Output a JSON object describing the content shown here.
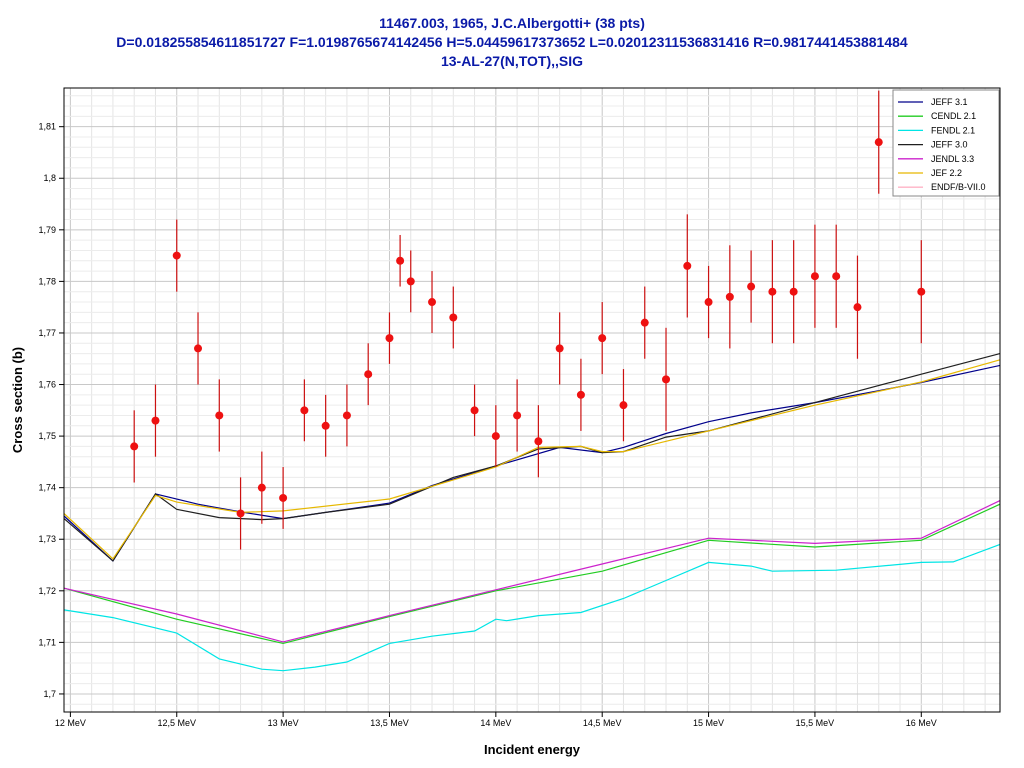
{
  "chart_data": {
    "type": "scatter",
    "title": "11467.003, 1965, J.C.Albergotti+ (38 pts)",
    "subtitle": "D=0.018255854611851727 F=1.0198765674142456 H=5.04459617373652 L=0.02012311536831416 R=0.9817441453881484",
    "subtitle2": "13-AL-27(N,TOT),,SIG",
    "xlabel": "Incident energy",
    "ylabel": "Cross section (b)",
    "xlim": [
      11.97,
      16.37
    ],
    "ylim": [
      1.6965,
      1.8175
    ],
    "x_ticks": [
      {
        "value": 12.0,
        "label": "12 MeV"
      },
      {
        "value": 12.5,
        "label": "12,5 MeV"
      },
      {
        "value": 13.0,
        "label": "13 MeV"
      },
      {
        "value": 13.5,
        "label": "13,5 MeV"
      },
      {
        "value": 14.0,
        "label": "14 MeV"
      },
      {
        "value": 14.5,
        "label": "14,5 MeV"
      },
      {
        "value": 15.0,
        "label": "15 MeV"
      },
      {
        "value": 15.5,
        "label": "15,5 MeV"
      },
      {
        "value": 16.0,
        "label": "16 MeV"
      }
    ],
    "y_ticks": [
      {
        "value": 1.7,
        "label": "1,7"
      },
      {
        "value": 1.71,
        "label": "1,71"
      },
      {
        "value": 1.72,
        "label": "1,72"
      },
      {
        "value": 1.73,
        "label": "1,73"
      },
      {
        "value": 1.74,
        "label": "1,74"
      },
      {
        "value": 1.75,
        "label": "1,75"
      },
      {
        "value": 1.76,
        "label": "1,76"
      },
      {
        "value": 1.77,
        "label": "1,77"
      },
      {
        "value": 1.78,
        "label": "1,78"
      },
      {
        "value": 1.79,
        "label": "1,79"
      },
      {
        "value": 1.8,
        "label": "1,8"
      },
      {
        "value": 1.81,
        "label": "1,81"
      }
    ],
    "grid": true,
    "legend_position": "top-right",
    "series": [
      {
        "name": "JEFF 3.1",
        "color": "#00008b",
        "x": [
          11.97,
          12.2,
          12.4,
          12.6,
          12.8,
          13.0,
          13.2,
          13.5,
          13.7,
          14.0,
          14.3,
          14.5,
          14.6,
          14.8,
          15.0,
          15.2,
          15.5,
          15.8,
          16.0,
          16.37
        ],
        "y": [
          1.7345,
          1.7258,
          1.7388,
          1.7368,
          1.7353,
          1.734,
          1.7352,
          1.737,
          1.7404,
          1.7442,
          1.7478,
          1.7468,
          1.7478,
          1.7505,
          1.7528,
          1.7545,
          1.7565,
          1.7588,
          1.7604,
          1.7637
        ]
      },
      {
        "name": "CENDL 2.1",
        "color": "#22cc22",
        "x": [
          11.97,
          12.5,
          13.0,
          13.5,
          14.0,
          14.5,
          15.0,
          15.5,
          16.0,
          16.37
        ],
        "y": [
          1.7205,
          1.7145,
          1.7098,
          1.715,
          1.72,
          1.7238,
          1.7298,
          1.7285,
          1.7298,
          1.7368
        ]
      },
      {
        "name": "FENDL 2.1",
        "color": "#00e5e5",
        "x": [
          11.97,
          12.2,
          12.5,
          12.7,
          12.9,
          13.0,
          13.15,
          13.3,
          13.5,
          13.7,
          13.9,
          14.0,
          14.05,
          14.2,
          14.4,
          14.6,
          14.8,
          15.0,
          15.2,
          15.3,
          15.6,
          16.0,
          16.15,
          16.37
        ],
        "y": [
          1.7163,
          1.7148,
          1.7118,
          1.7068,
          1.7048,
          1.7045,
          1.7052,
          1.7062,
          1.7098,
          1.7112,
          1.7122,
          1.7145,
          1.7142,
          1.7152,
          1.7158,
          1.7185,
          1.722,
          1.7255,
          1.7248,
          1.7238,
          1.724,
          1.7255,
          1.7256,
          1.729
        ]
      },
      {
        "name": "JEFF 3.0",
        "color": "#202020",
        "x": [
          11.97,
          12.2,
          12.4,
          12.5,
          12.7,
          12.9,
          13.0,
          13.2,
          13.5,
          13.8,
          14.0,
          14.2,
          14.4,
          14.5,
          14.6,
          14.8,
          15.0,
          15.5,
          16.0,
          16.37
        ],
        "y": [
          1.734,
          1.7258,
          1.7388,
          1.7358,
          1.7342,
          1.7338,
          1.734,
          1.7352,
          1.7368,
          1.742,
          1.7442,
          1.7475,
          1.748,
          1.7468,
          1.747,
          1.7498,
          1.751,
          1.7565,
          1.762,
          1.766
        ]
      },
      {
        "name": "JENDL 3.3",
        "color": "#cc22cc",
        "x": [
          11.97,
          12.5,
          13.0,
          13.5,
          14.0,
          14.5,
          15.0,
          15.5,
          16.0,
          16.37
        ],
        "y": [
          1.7205,
          1.7155,
          1.7101,
          1.7152,
          1.7202,
          1.7252,
          1.7302,
          1.7292,
          1.7302,
          1.7375
        ]
      },
      {
        "name": "JEF 2.2",
        "color": "#e6b800",
        "x": [
          11.97,
          12.2,
          12.4,
          12.5,
          12.8,
          13.0,
          13.5,
          13.8,
          14.0,
          14.2,
          14.4,
          14.5,
          14.6,
          14.8,
          15.0,
          15.5,
          16.0,
          16.37
        ],
        "y": [
          1.735,
          1.7262,
          1.7385,
          1.7372,
          1.7352,
          1.7355,
          1.7378,
          1.7415,
          1.744,
          1.7478,
          1.748,
          1.747,
          1.747,
          1.749,
          1.751,
          1.756,
          1.7605,
          1.7648
        ]
      },
      {
        "name": "ENDF/B-VII.0",
        "color": "#ffb3c6",
        "x": [],
        "y": []
      }
    ],
    "experimental": {
      "color": "#ee1111",
      "x": [
        12.3,
        12.4,
        12.5,
        12.6,
        12.7,
        12.8,
        12.9,
        13.0,
        13.1,
        13.2,
        13.3,
        13.4,
        13.5,
        13.55,
        13.6,
        13.7,
        13.8,
        13.9,
        14.0,
        14.1,
        14.2,
        14.3,
        14.4,
        14.5,
        14.6,
        14.7,
        14.8,
        14.9,
        15.0,
        15.1,
        15.2,
        15.3,
        15.4,
        15.5,
        15.6,
        15.7,
        15.8,
        16.0
      ],
      "y": [
        1.748,
        1.753,
        1.785,
        1.767,
        1.754,
        1.735,
        1.74,
        1.738,
        1.755,
        1.752,
        1.754,
        1.762,
        1.769,
        1.784,
        1.78,
        1.776,
        1.773,
        1.755,
        1.75,
        1.754,
        1.749,
        1.767,
        1.758,
        1.769,
        1.756,
        1.772,
        1.761,
        1.783,
        1.776,
        1.777,
        1.779,
        1.778,
        1.778,
        1.781,
        1.781,
        1.775,
        1.807,
        1.778
      ],
      "err": [
        0.007,
        0.007,
        0.007,
        0.007,
        0.007,
        0.007,
        0.007,
        0.006,
        0.006,
        0.006,
        0.006,
        0.006,
        0.005,
        0.005,
        0.006,
        0.006,
        0.006,
        0.005,
        0.006,
        0.007,
        0.007,
        0.007,
        0.007,
        0.007,
        0.007,
        0.007,
        0.01,
        0.01,
        0.007,
        0.01,
        0.007,
        0.01,
        0.01,
        0.01,
        0.01,
        0.01,
        0.01,
        0.01
      ]
    }
  }
}
